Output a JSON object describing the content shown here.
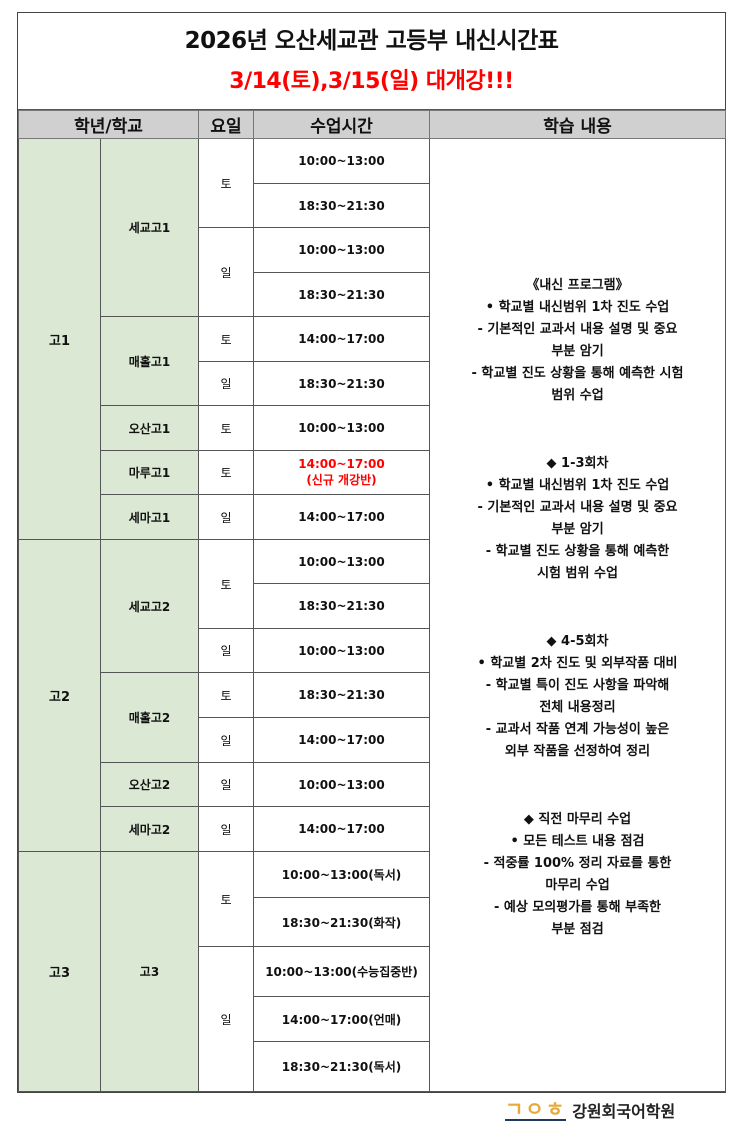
{
  "header": {
    "title": "2026년 오산세교관 고등부 내신시간표",
    "subtitle": "3/14(토),3/15(일) 대개강!!!"
  },
  "columns": [
    "학년/학교",
    "요일",
    "수업시간",
    "학습 내용"
  ],
  "colors": {
    "grade_bg": "#dbe9d4",
    "header_bg": "#d0d0d0",
    "highlight": "#ff0000"
  },
  "grades": [
    {
      "grade": "고1",
      "schools": [
        {
          "name": "세교고1",
          "days": [
            {
              "day": "토",
              "times": [
                {
                  "text": "10:00~13:00"
                },
                {
                  "text": "18:30~21:30"
                }
              ]
            },
            {
              "day": "일",
              "times": [
                {
                  "text": "10:00~13:00"
                },
                {
                  "text": "18:30~21:30"
                }
              ]
            }
          ]
        },
        {
          "name": "매홀고1",
          "days": [
            {
              "day": "토",
              "times": [
                {
                  "text": "14:00~17:00"
                }
              ]
            },
            {
              "day": "일",
              "times": [
                {
                  "text": "18:30~21:30"
                }
              ]
            }
          ]
        },
        {
          "name": "오산고1",
          "days": [
            {
              "day": "토",
              "times": [
                {
                  "text": "10:00~13:00"
                }
              ]
            }
          ]
        },
        {
          "name": "마루고1",
          "days": [
            {
              "day": "토",
              "times": [
                {
                  "text": "14:00~17:00",
                  "note": "(신규 개강반)",
                  "highlight": true
                }
              ]
            }
          ]
        },
        {
          "name": "세마고1",
          "days": [
            {
              "day": "일",
              "times": [
                {
                  "text": "14:00~17:00"
                }
              ]
            }
          ]
        }
      ]
    },
    {
      "grade": "고2",
      "schools": [
        {
          "name": "세교고2",
          "days": [
            {
              "day": "토",
              "times": [
                {
                  "text": "10:00~13:00"
                },
                {
                  "text": "18:30~21:30"
                }
              ]
            },
            {
              "day": "일",
              "times": [
                {
                  "text": "10:00~13:00"
                }
              ]
            }
          ]
        },
        {
          "name": "매홀고2",
          "days": [
            {
              "day": "토",
              "times": [
                {
                  "text": "18:30~21:30"
                }
              ]
            },
            {
              "day": "일",
              "times": [
                {
                  "text": "14:00~17:00"
                }
              ]
            }
          ]
        },
        {
          "name": "오산고2",
          "days": [
            {
              "day": "일",
              "times": [
                {
                  "text": "10:00~13:00"
                }
              ]
            }
          ]
        },
        {
          "name": "세마고2",
          "days": [
            {
              "day": "일",
              "times": [
                {
                  "text": "14:00~17:00"
                }
              ]
            }
          ]
        }
      ]
    },
    {
      "grade": "고3",
      "schools": [
        {
          "name": "고3",
          "days": [
            {
              "day": "토",
              "times": [
                {
                  "text": "10:00~13:00(독서)"
                },
                {
                  "text": "18:30~21:30(화작)"
                }
              ]
            },
            {
              "day": "일",
              "times": [
                {
                  "text": "10:00~13:00(수능집중반)"
                },
                {
                  "text": "14:00~17:00(언매)"
                },
                {
                  "text": "18:30~21:30(독서)"
                }
              ]
            }
          ]
        }
      ]
    }
  ],
  "content_blocks": [
    [
      "《내신 프로그램》",
      "• 학교별 내신범위 1차 진도 수업",
      "- 기본적인 교과서 내용 설명 및 중요",
      "부분 암기",
      "- 학교별 진도 상황을 통해 예측한 시험",
      "범위 수업"
    ],
    [
      "◆ 1-3회차",
      "• 학교별 내신범위 1차 진도 수업",
      "- 기본적인 교과서 내용 설명 및 중요",
      "부분 암기",
      "- 학교별 진도 상황을 통해 예측한",
      "시험 범위 수업"
    ],
    [
      "◆ 4-5회차",
      "• 학교별 2차 진도 및 외부작품 대비",
      "- 학교별 특이 진도 사항을 파악해",
      "전체 내용정리",
      "- 교과서 작품 연계 가능성이 높은",
      "외부 작품을 선정하여 정리"
    ],
    [
      "◆ 직전 마무리 수업",
      "• 모든 테스트 내용 점검",
      "- 적중률 100% 정리 자료를 통한",
      "마무리 수업",
      "- 예상 모의평가를 통해 부족한",
      "부분 점검"
    ]
  ],
  "logo": {
    "mark": "ᄀᄋᄒ",
    "name": "강원회국어학원"
  }
}
